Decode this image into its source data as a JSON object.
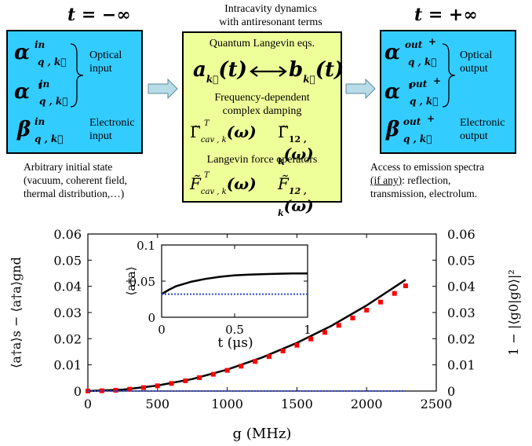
{
  "diagram": {
    "left_time": "t = −∞",
    "right_time": "t = +∞",
    "center_header": [
      "Intracavity dynamics",
      "with antiresonant terms"
    ],
    "left_box": {
      "alpha": "α",
      "alpha_prime": "α '",
      "beta": "β",
      "sup_in": "in",
      "sub_qk": "q , k⃗",
      "optical_label": [
        "Optical",
        "input"
      ],
      "electronic_label": [
        "Electronic",
        "input"
      ]
    },
    "left_caption": [
      "Arbitrary initial state",
      "(vacuum, coherent field,",
      "thermal distribution,…)"
    ],
    "center_box": {
      "ql_title": "Quantum Langevin eqs.",
      "a_term": "a",
      "b_term": "b",
      "t_arg": "(t)",
      "damping_title": [
        "Frequency-dependent",
        "complex damping"
      ],
      "gamma": "Γ̃",
      "force_title": "Langevin force operators",
      "force": "F̃",
      "sub_cav": "cav , k",
      "sub_12": "12 , k",
      "sup_T": "T",
      "omega_arg": "(ω)"
    },
    "right_box": {
      "alpha": "α",
      "alpha_prime": "α '",
      "beta": "β",
      "sup_out": "out",
      "plus": "+",
      "sub_qk": "q , k⃗",
      "optical_label": [
        "Optical",
        "output"
      ],
      "electronic_label": [
        "Electronic",
        "output"
      ]
    },
    "right_caption_line1": "Access to emission spectra",
    "right_caption_if": "(if any)",
    "right_caption_rest": ": reflection,",
    "right_caption_line3": "transmission, electrolum.",
    "colors": {
      "cyan": "#33ccff",
      "yellow": "#eeff99",
      "arrow": "#b8dde8"
    }
  },
  "chart_data": [
    {
      "type": "line",
      "xlabel": "g (MHz)",
      "ylabel": "⟨a†a⟩s − ⟨a†a⟩gnd",
      "ylabel_right": "1 − |⟨g0|g0⟩|²",
      "xlim": [
        0,
        2500
      ],
      "ylim": [
        0,
        0.06
      ],
      "x_ticks": [
        "0",
        "500",
        "1000",
        "1500",
        "2000",
        "2500"
      ],
      "y_ticks": [
        "0",
        "0.01",
        "0.02",
        "0.03",
        "0.04",
        "0.05",
        "0.06"
      ],
      "series": [
        {
          "style": "solid-black",
          "x": [
            0,
            250,
            500,
            750,
            1000,
            1250,
            1500,
            1750,
            2000,
            2280
          ],
          "y": [
            0,
            0.0005,
            0.0021,
            0.0046,
            0.0082,
            0.0128,
            0.0184,
            0.025,
            0.0327,
            0.0425
          ]
        },
        {
          "style": "red-squares",
          "x": [
            0,
            100,
            200,
            300,
            400,
            500,
            600,
            700,
            800,
            900,
            1000,
            1100,
            1200,
            1300,
            1400,
            1500,
            1600,
            1700,
            1800,
            1900,
            2000,
            2100,
            2200,
            2280
          ],
          "y": [
            0,
            0.0001,
            0.0003,
            0.0007,
            0.0013,
            0.002,
            0.0029,
            0.0039,
            0.0051,
            0.0064,
            0.0079,
            0.0095,
            0.0113,
            0.0132,
            0.0153,
            0.0175,
            0.0199,
            0.0224,
            0.0251,
            0.0279,
            0.0309,
            0.034,
            0.0373,
            0.0402
          ]
        },
        {
          "style": "blue-dotted",
          "x": [
            0,
            2280
          ],
          "y": [
            0,
            0
          ]
        }
      ]
    },
    {
      "type": "line",
      "role": "inset",
      "xlabel": "t (μs)",
      "ylabel": "⟨a†a⟩",
      "xlim": [
        0,
        1
      ],
      "ylim": [
        0,
        0.1
      ],
      "x_ticks": [
        "0",
        "0.5",
        "1"
      ],
      "y_ticks": [
        "0",
        "0.05",
        "0.1"
      ],
      "series": [
        {
          "style": "solid-black",
          "x": [
            0,
            0.05,
            0.1,
            0.2,
            0.3,
            0.4,
            0.5,
            0.6,
            0.7,
            0.8,
            0.9,
            1.0
          ],
          "y": [
            0.032,
            0.038,
            0.043,
            0.049,
            0.053,
            0.056,
            0.058,
            0.059,
            0.0597,
            0.0602,
            0.0605,
            0.0607
          ]
        },
        {
          "style": "blue-dotted",
          "x": [
            0,
            1
          ],
          "y": [
            0.032,
            0.032
          ]
        }
      ]
    }
  ]
}
